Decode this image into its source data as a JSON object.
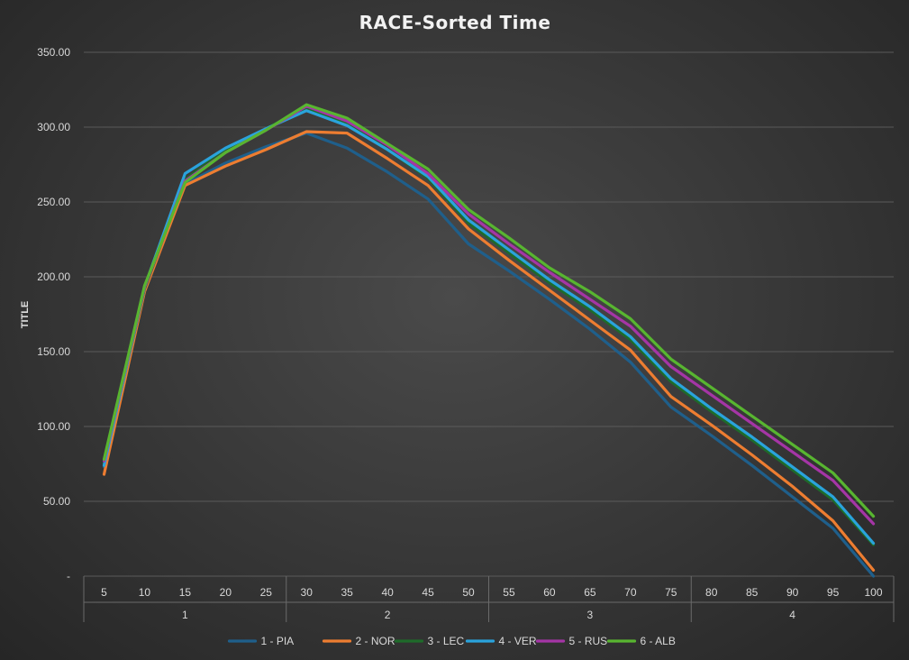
{
  "chart_data": {
    "type": "line",
    "title": "RACE-Sorted Time",
    "ylabel": "TITLE",
    "xlabel": "",
    "ylim": [
      0,
      350
    ],
    "yticks": [
      0,
      50,
      100,
      150,
      200,
      250,
      300,
      350
    ],
    "ytick_labels": [
      "-",
      "50.00",
      "100.00",
      "150.00",
      "200.00",
      "250.00",
      "300.00",
      "350.00"
    ],
    "grid": true,
    "legend_position": "bottom",
    "x": [
      "5",
      "10",
      "15",
      "20",
      "25",
      "30",
      "35",
      "40",
      "45",
      "50",
      "55",
      "60",
      "65",
      "70",
      "75",
      "80",
      "85",
      "90",
      "95",
      "100"
    ],
    "groups": [
      {
        "label": "1",
        "start": 0,
        "end": 4
      },
      {
        "label": "2",
        "start": 5,
        "end": 9
      },
      {
        "label": "3",
        "start": 10,
        "end": 14
      },
      {
        "label": "4",
        "start": 15,
        "end": 19
      }
    ],
    "series": [
      {
        "name": "1 - PIA",
        "color": "#1f5f8b",
        "values": [
          73,
          190,
          262,
          276,
          287,
          296,
          286,
          270,
          252,
          222,
          204,
          185,
          165,
          143,
          113,
          94,
          74,
          53,
          32,
          0
        ]
      },
      {
        "name": "2 - NOR",
        "color": "#ed7d31",
        "values": [
          68,
          190,
          261,
          274,
          285,
          297,
          296,
          279,
          261,
          232,
          211,
          191,
          171,
          151,
          120,
          101,
          81,
          60,
          37,
          4
        ]
      },
      {
        "name": "3 - LEC",
        "color": "#1e6b2a",
        "values": [
          75,
          192,
          265,
          285,
          299,
          313,
          302,
          285,
          266,
          236,
          216,
          196,
          178,
          158,
          130,
          110,
          91,
          71,
          51,
          21
        ]
      },
      {
        "name": "4 - VER",
        "color": "#2aa3dc",
        "values": [
          74,
          193,
          269,
          286,
          299,
          311,
          301,
          285,
          267,
          238,
          218,
          198,
          180,
          160,
          132,
          112,
          93,
          73,
          53,
          22
        ]
      },
      {
        "name": "5 - RUS",
        "color": "#a535a6",
        "values": [
          77,
          193,
          264,
          283,
          298,
          314,
          304,
          288,
          269,
          242,
          222,
          203,
          185,
          167,
          140,
          121,
          102,
          83,
          64,
          35
        ]
      },
      {
        "name": "6 - ALB",
        "color": "#58b530",
        "values": [
          78,
          194,
          263,
          283,
          298,
          315,
          306,
          289,
          272,
          245,
          226,
          206,
          190,
          172,
          145,
          126,
          107,
          88,
          69,
          40
        ]
      }
    ]
  }
}
